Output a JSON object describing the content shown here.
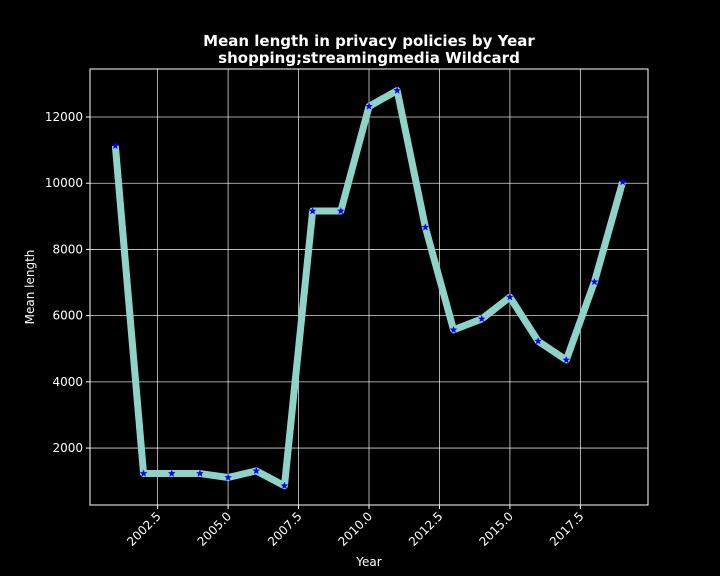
{
  "chart_data": {
    "type": "line",
    "title": "Mean length in privacy policies by Year",
    "subtitle": "shopping;streamingmedia Wildcard",
    "xlabel": "Year",
    "ylabel": "Mean length",
    "x": [
      2001,
      2002,
      2003,
      2004,
      2005,
      2006,
      2007,
      2008,
      2009,
      2010,
      2011,
      2012,
      2013,
      2014,
      2015,
      2016,
      2017,
      2018,
      2019
    ],
    "series": [
      {
        "values": [
          11130,
          1230,
          1230,
          1230,
          1110,
          1310,
          860,
          9160,
          9160,
          12320,
          12800,
          8670,
          5570,
          5900,
          6560,
          5230,
          4660,
          7020,
          10040
        ]
      }
    ],
    "xlim": [
      2000.1,
      2019.9
    ],
    "ylim": [
      280,
      13450
    ],
    "xticks": [
      2002.5,
      2005.0,
      2007.5,
      2010.0,
      2012.5,
      2015.0,
      2017.5
    ],
    "xtick_labels": [
      "2002.5",
      "2005.0",
      "2007.5",
      "2010.0",
      "2012.5",
      "2015.0",
      "2017.5"
    ],
    "yticks": [
      2000,
      4000,
      6000,
      8000,
      10000,
      12000
    ],
    "ytick_labels": [
      "2000",
      "4000",
      "6000",
      "8000",
      "10000",
      "12000"
    ],
    "grid": true,
    "line_color": "#8dd3c7",
    "marker_color": "#0000ff",
    "marker": "star",
    "background": "#000000",
    "foreground": "#ffffff"
  }
}
